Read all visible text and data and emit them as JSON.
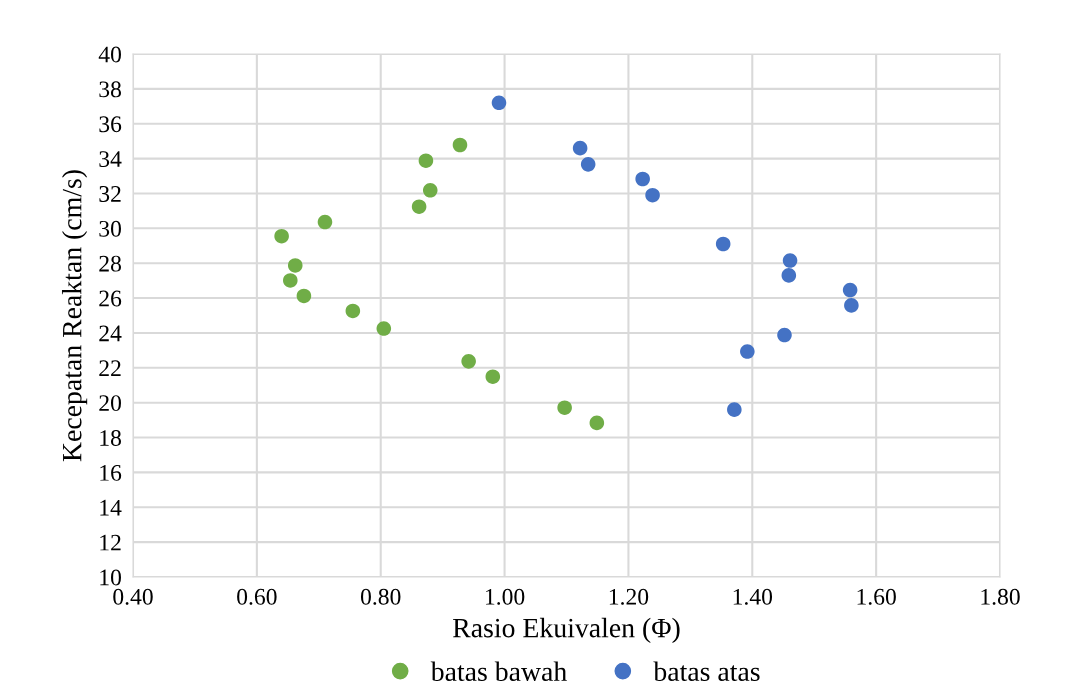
{
  "chart_data": {
    "type": "scatter",
    "xlabel": "Rasio Ekuivalen (Φ)",
    "ylabel": "Kecepatan Reaktan (cm/s)",
    "xlim": [
      0.4,
      1.8
    ],
    "xticks": [
      {
        "value": 0.4,
        "label": "0.40"
      },
      {
        "value": 0.6,
        "label": "0.60"
      },
      {
        "value": 0.8,
        "label": "0.80"
      },
      {
        "value": 1.0,
        "label": "1.00"
      },
      {
        "value": 1.2,
        "label": "1.20"
      },
      {
        "value": 1.4,
        "label": "1.40"
      },
      {
        "value": 1.6,
        "label": "1.60"
      },
      {
        "value": 1.8,
        "label": "1.80"
      }
    ],
    "ylim": [
      10,
      40
    ],
    "yticks": [
      10,
      12,
      14,
      16,
      18,
      20,
      22,
      24,
      26,
      28,
      30,
      32,
      34,
      36,
      38,
      40
    ],
    "grid": true,
    "legend": "bottom",
    "marker": "circle",
    "series": [
      {
        "name": "batas bawah",
        "color": "#70ad47",
        "x": [
          0.928,
          0.873,
          0.88,
          0.862,
          0.71,
          0.64,
          0.662,
          0.654,
          0.676,
          0.755,
          0.805,
          0.942,
          0.981,
          1.097,
          1.149
        ],
        "values": [
          34.78,
          33.88,
          32.18,
          31.24,
          30.36,
          29.55,
          27.87,
          27.01,
          26.12,
          25.26,
          24.25,
          22.37,
          21.49,
          19.71,
          18.84
        ]
      },
      {
        "name": "batas atas",
        "color": "#4472c4",
        "x": [
          0.991,
          1.122,
          1.135,
          1.223,
          1.239,
          1.353,
          1.461,
          1.459,
          1.558,
          1.56,
          1.452,
          1.392,
          1.371
        ],
        "values": [
          37.2,
          34.6,
          33.67,
          32.83,
          31.9,
          29.1,
          28.15,
          27.3,
          26.46,
          25.58,
          23.88,
          22.93,
          19.6
        ]
      }
    ]
  }
}
